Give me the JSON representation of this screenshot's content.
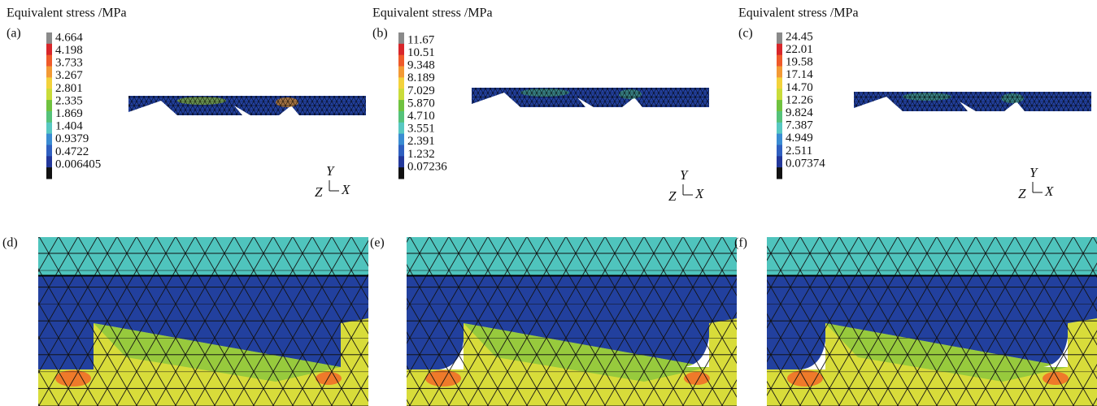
{
  "panels": [
    {
      "title": "Equivalent stress /MPa",
      "label": "(a)",
      "colorbar": [
        "4.664",
        "4.198",
        "3.733",
        "3.267",
        "2.801",
        "2.335",
        "1.869",
        "1.404",
        "0.9379",
        "0.4722",
        "0.006405"
      ],
      "axes": {
        "y": "Y",
        "z": "Z",
        "x": "X"
      }
    },
    {
      "title": "Equivalent stress /MPa",
      "label": "(b)",
      "colorbar": [
        "11.67",
        "10.51",
        "9.348",
        "8.189",
        "7.029",
        "5.870",
        "4.710",
        "3.551",
        "2.391",
        "1.232",
        "0.07236"
      ],
      "axes": {
        "y": "Y",
        "z": "Z",
        "x": "X"
      }
    },
    {
      "title": "Equivalent stress /MPa",
      "label": "(c)",
      "colorbar": [
        "24.45",
        "22.01",
        "19.58",
        "17.14",
        "14.70",
        "12.26",
        "9.824",
        "7.387",
        "4.949",
        "2.511",
        "0.07374"
      ],
      "axes": {
        "y": "Y",
        "z": "Z",
        "x": "X"
      }
    }
  ],
  "detail_panels": [
    {
      "label": "(d)"
    },
    {
      "label": "(e)"
    },
    {
      "label": "(f)"
    }
  ]
}
